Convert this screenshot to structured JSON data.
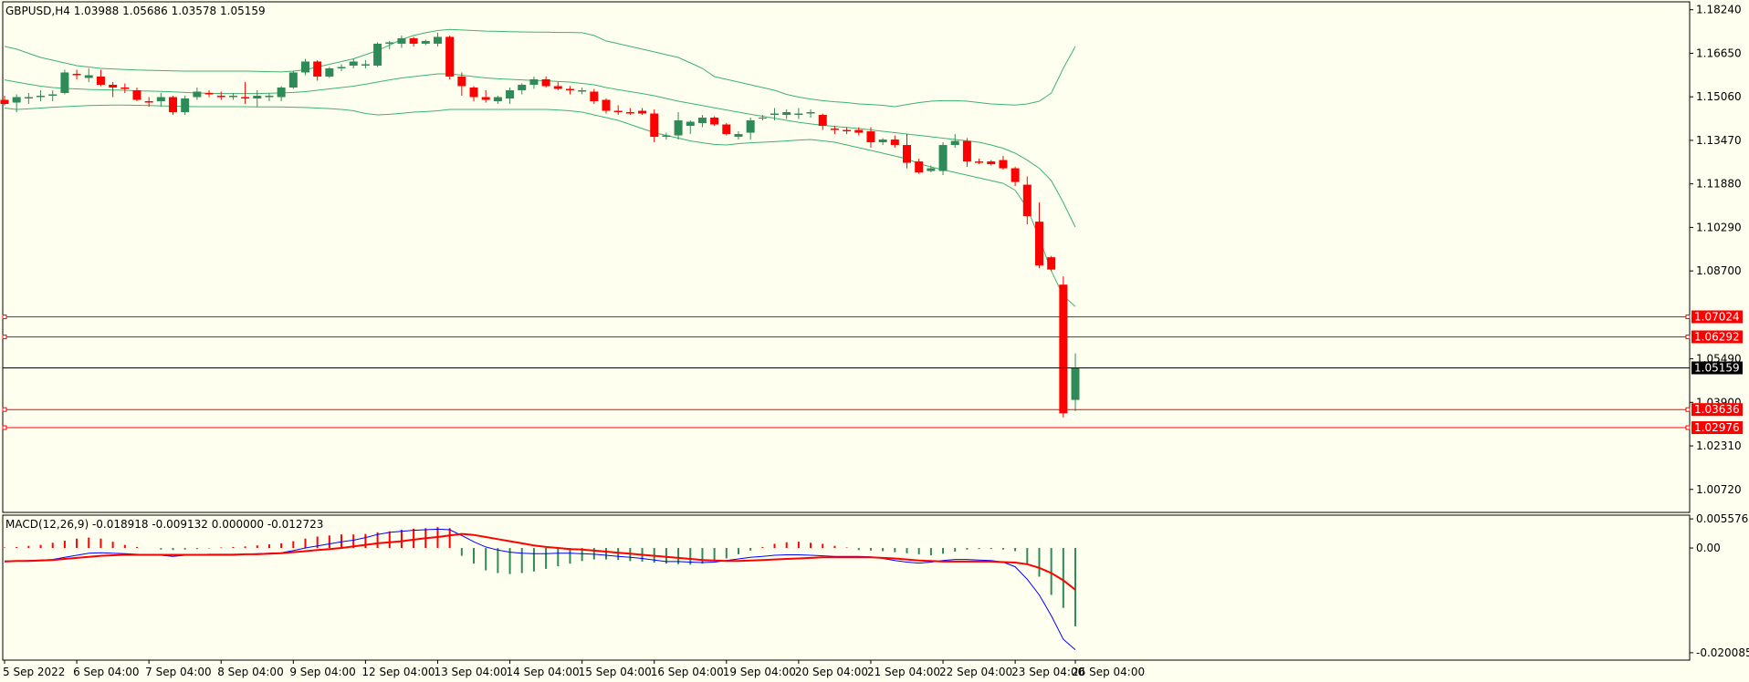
{
  "chart_data": {
    "type": "candlestick",
    "symbol_header": "GBPUSD,H4  1.03988 1.05686 1.03578 1.05159",
    "colors": {
      "background": "#ffffef",
      "bull": "#2e8b57",
      "bear": "#ff0000",
      "bands": "#3cb371",
      "hline": "#ff0000",
      "price_line": "#000000",
      "macd_line": "#0000ff",
      "signal_line": "#ff0000"
    },
    "price_axis": {
      "ylim": [
        0.9988,
        1.1853
      ],
      "ticks": [
        "1.18240",
        "1.16650",
        "1.15060",
        "1.13470",
        "1.11880",
        "1.10290",
        "1.08700",
        "1.05490",
        "1.03900",
        "1.02310",
        "1.00720"
      ]
    },
    "horizontal_lines": [
      {
        "value": 1.07024,
        "label": "1.07024"
      },
      {
        "value": 1.06292,
        "label": "1.06292"
      },
      {
        "value": 1.03636,
        "label": "1.03636"
      },
      {
        "value": 1.02976,
        "label": "1.02976"
      }
    ],
    "current_price": {
      "value": 1.05159,
      "label": "1.05159"
    },
    "x_axis": {
      "labels": [
        "5 Sep 2022",
        "6 Sep 04:00",
        "7 Sep 04:00",
        "8 Sep 04:00",
        "9 Sep 04:00",
        "12 Sep 04:00",
        "13 Sep 04:00",
        "14 Sep 04:00",
        "15 Sep 04:00",
        "16 Sep 04:00",
        "19 Sep 04:00",
        "20 Sep 04:00",
        "21 Sep 04:00",
        "22 Sep 04:00",
        "23 Sep 04:00",
        "26 Sep 04:00"
      ],
      "label_bar_index": [
        0,
        6,
        12,
        18,
        24,
        30,
        36,
        42,
        48,
        54,
        60,
        66,
        72,
        78,
        84,
        89
      ]
    },
    "candles": [
      {
        "o": 1.1495,
        "h": 1.151,
        "l": 1.1475,
        "c": 1.148
      },
      {
        "o": 1.1485,
        "h": 1.1515,
        "l": 1.145,
        "c": 1.1505
      },
      {
        "o": 1.15,
        "h": 1.152,
        "l": 1.148,
        "c": 1.1505
      },
      {
        "o": 1.1505,
        "h": 1.153,
        "l": 1.149,
        "c": 1.151
      },
      {
        "o": 1.151,
        "h": 1.153,
        "l": 1.149,
        "c": 1.1515
      },
      {
        "o": 1.152,
        "h": 1.1605,
        "l": 1.1515,
        "c": 1.1595
      },
      {
        "o": 1.159,
        "h": 1.1605,
        "l": 1.157,
        "c": 1.1585
      },
      {
        "o": 1.1575,
        "h": 1.161,
        "l": 1.156,
        "c": 1.1585
      },
      {
        "o": 1.158,
        "h": 1.1605,
        "l": 1.1545,
        "c": 1.155
      },
      {
        "o": 1.155,
        "h": 1.156,
        "l": 1.1505,
        "c": 1.154
      },
      {
        "o": 1.154,
        "h": 1.1555,
        "l": 1.152,
        "c": 1.1535
      },
      {
        "o": 1.153,
        "h": 1.154,
        "l": 1.149,
        "c": 1.1495
      },
      {
        "o": 1.149,
        "h": 1.1505,
        "l": 1.147,
        "c": 1.1485
      },
      {
        "o": 1.149,
        "h": 1.152,
        "l": 1.147,
        "c": 1.1505
      },
      {
        "o": 1.1505,
        "h": 1.151,
        "l": 1.144,
        "c": 1.145
      },
      {
        "o": 1.145,
        "h": 1.151,
        "l": 1.144,
        "c": 1.15
      },
      {
        "o": 1.1505,
        "h": 1.154,
        "l": 1.1495,
        "c": 1.1525
      },
      {
        "o": 1.152,
        "h": 1.153,
        "l": 1.1505,
        "c": 1.1515
      },
      {
        "o": 1.151,
        "h": 1.1525,
        "l": 1.1495,
        "c": 1.1505
      },
      {
        "o": 1.1505,
        "h": 1.152,
        "l": 1.1495,
        "c": 1.151
      },
      {
        "o": 1.1505,
        "h": 1.156,
        "l": 1.148,
        "c": 1.15
      },
      {
        "o": 1.15,
        "h": 1.153,
        "l": 1.147,
        "c": 1.151
      },
      {
        "o": 1.1505,
        "h": 1.152,
        "l": 1.149,
        "c": 1.151
      },
      {
        "o": 1.1505,
        "h": 1.1545,
        "l": 1.149,
        "c": 1.154
      },
      {
        "o": 1.154,
        "h": 1.16,
        "l": 1.1535,
        "c": 1.1595
      },
      {
        "o": 1.1595,
        "h": 1.1645,
        "l": 1.1585,
        "c": 1.1635
      },
      {
        "o": 1.1635,
        "h": 1.164,
        "l": 1.1565,
        "c": 1.158
      },
      {
        "o": 1.158,
        "h": 1.1615,
        "l": 1.1575,
        "c": 1.161
      },
      {
        "o": 1.161,
        "h": 1.1625,
        "l": 1.16,
        "c": 1.1615
      },
      {
        "o": 1.162,
        "h": 1.1645,
        "l": 1.161,
        "c": 1.1635
      },
      {
        "o": 1.162,
        "h": 1.164,
        "l": 1.161,
        "c": 1.1625
      },
      {
        "o": 1.162,
        "h": 1.1705,
        "l": 1.1615,
        "c": 1.17
      },
      {
        "o": 1.17,
        "h": 1.171,
        "l": 1.168,
        "c": 1.1705
      },
      {
        "o": 1.17,
        "h": 1.173,
        "l": 1.1685,
        "c": 1.172
      },
      {
        "o": 1.172,
        "h": 1.1725,
        "l": 1.169,
        "c": 1.17
      },
      {
        "o": 1.17,
        "h": 1.1715,
        "l": 1.1695,
        "c": 1.171
      },
      {
        "o": 1.17,
        "h": 1.174,
        "l": 1.169,
        "c": 1.1725
      },
      {
        "o": 1.1725,
        "h": 1.173,
        "l": 1.157,
        "c": 1.158
      },
      {
        "o": 1.158,
        "h": 1.1595,
        "l": 1.151,
        "c": 1.1545
      },
      {
        "o": 1.154,
        "h": 1.1545,
        "l": 1.149,
        "c": 1.1505
      },
      {
        "o": 1.1505,
        "h": 1.153,
        "l": 1.1485,
        "c": 1.1495
      },
      {
        "o": 1.149,
        "h": 1.151,
        "l": 1.148,
        "c": 1.1505
      },
      {
        "o": 1.15,
        "h": 1.154,
        "l": 1.148,
        "c": 1.153
      },
      {
        "o": 1.153,
        "h": 1.1555,
        "l": 1.1515,
        "c": 1.155
      },
      {
        "o": 1.155,
        "h": 1.158,
        "l": 1.1535,
        "c": 1.157
      },
      {
        "o": 1.157,
        "h": 1.158,
        "l": 1.154,
        "c": 1.1545
      },
      {
        "o": 1.1545,
        "h": 1.156,
        "l": 1.153,
        "c": 1.1535
      },
      {
        "o": 1.1535,
        "h": 1.1545,
        "l": 1.1515,
        "c": 1.153
      },
      {
        "o": 1.1525,
        "h": 1.154,
        "l": 1.1515,
        "c": 1.153
      },
      {
        "o": 1.1525,
        "h": 1.1535,
        "l": 1.148,
        "c": 1.149
      },
      {
        "o": 1.1495,
        "h": 1.15,
        "l": 1.1445,
        "c": 1.1455
      },
      {
        "o": 1.1455,
        "h": 1.1475,
        "l": 1.144,
        "c": 1.145
      },
      {
        "o": 1.145,
        "h": 1.1465,
        "l": 1.144,
        "c": 1.1445
      },
      {
        "o": 1.1455,
        "h": 1.1465,
        "l": 1.144,
        "c": 1.1445
      },
      {
        "o": 1.1445,
        "h": 1.146,
        "l": 1.134,
        "c": 1.136
      },
      {
        "o": 1.136,
        "h": 1.1375,
        "l": 1.135,
        "c": 1.1365
      },
      {
        "o": 1.1365,
        "h": 1.145,
        "l": 1.135,
        "c": 1.142
      },
      {
        "o": 1.14,
        "h": 1.142,
        "l": 1.137,
        "c": 1.1415
      },
      {
        "o": 1.141,
        "h": 1.144,
        "l": 1.1395,
        "c": 1.143
      },
      {
        "o": 1.143,
        "h": 1.1435,
        "l": 1.14,
        "c": 1.1405
      },
      {
        "o": 1.1405,
        "h": 1.141,
        "l": 1.1365,
        "c": 1.137
      },
      {
        "o": 1.136,
        "h": 1.138,
        "l": 1.135,
        "c": 1.137
      },
      {
        "o": 1.1375,
        "h": 1.143,
        "l": 1.135,
        "c": 1.142
      },
      {
        "o": 1.143,
        "h": 1.144,
        "l": 1.142,
        "c": 1.143
      },
      {
        "o": 1.144,
        "h": 1.1465,
        "l": 1.142,
        "c": 1.1445
      },
      {
        "o": 1.144,
        "h": 1.146,
        "l": 1.1425,
        "c": 1.145
      },
      {
        "o": 1.144,
        "h": 1.1465,
        "l": 1.1425,
        "c": 1.1445
      },
      {
        "o": 1.1445,
        "h": 1.146,
        "l": 1.143,
        "c": 1.145
      },
      {
        "o": 1.144,
        "h": 1.1445,
        "l": 1.1385,
        "c": 1.14
      },
      {
        "o": 1.139,
        "h": 1.14,
        "l": 1.137,
        "c": 1.1385
      },
      {
        "o": 1.1385,
        "h": 1.1395,
        "l": 1.137,
        "c": 1.138
      },
      {
        "o": 1.1385,
        "h": 1.1395,
        "l": 1.1365,
        "c": 1.1375
      },
      {
        "o": 1.138,
        "h": 1.1395,
        "l": 1.132,
        "c": 1.134
      },
      {
        "o": 1.134,
        "h": 1.1355,
        "l": 1.133,
        "c": 1.135
      },
      {
        "o": 1.135,
        "h": 1.1365,
        "l": 1.132,
        "c": 1.133
      },
      {
        "o": 1.133,
        "h": 1.137,
        "l": 1.1245,
        "c": 1.1265
      },
      {
        "o": 1.127,
        "h": 1.128,
        "l": 1.1225,
        "c": 1.123
      },
      {
        "o": 1.1235,
        "h": 1.1255,
        "l": 1.123,
        "c": 1.1245
      },
      {
        "o": 1.1235,
        "h": 1.134,
        "l": 1.122,
        "c": 1.133
      },
      {
        "o": 1.133,
        "h": 1.137,
        "l": 1.132,
        "c": 1.1345
      },
      {
        "o": 1.1345,
        "h": 1.1355,
        "l": 1.125,
        "c": 1.127
      },
      {
        "o": 1.127,
        "h": 1.128,
        "l": 1.126,
        "c": 1.1265
      },
      {
        "o": 1.127,
        "h": 1.1275,
        "l": 1.1255,
        "c": 1.126
      },
      {
        "o": 1.1275,
        "h": 1.129,
        "l": 1.124,
        "c": 1.1245
      },
      {
        "o": 1.1245,
        "h": 1.125,
        "l": 1.118,
        "c": 1.1195
      },
      {
        "o": 1.1185,
        "h": 1.1215,
        "l": 1.104,
        "c": 1.107
      },
      {
        "o": 1.105,
        "h": 1.112,
        "l": 1.088,
        "c": 1.089
      },
      {
        "o": 1.092,
        "h": 1.0925,
        "l": 1.087,
        "c": 1.0875
      },
      {
        "o": 1.082,
        "h": 1.085,
        "l": 1.0335,
        "c": 1.035
      },
      {
        "o": 1.0399,
        "h": 1.0569,
        "l": 1.0358,
        "c": 1.0516
      }
    ],
    "bands_upper": [
      1.169,
      1.168,
      1.1665,
      1.165,
      1.164,
      1.163,
      1.162,
      1.1615,
      1.161,
      1.1608,
      1.1606,
      1.1604,
      1.1603,
      1.1602,
      1.1601,
      1.16,
      1.16,
      1.16,
      1.16,
      1.16,
      1.16,
      1.1599,
      1.1598,
      1.1597,
      1.16,
      1.1605,
      1.1615,
      1.1625,
      1.1635,
      1.1645,
      1.166,
      1.1675,
      1.1695,
      1.1715,
      1.173,
      1.174,
      1.1748,
      1.1752,
      1.175,
      1.1748,
      1.1746,
      1.1745,
      1.1744,
      1.1743,
      1.1742,
      1.1742,
      1.1741,
      1.1741,
      1.174,
      1.173,
      1.171,
      1.17,
      1.169,
      1.168,
      1.167,
      1.166,
      1.165,
      1.163,
      1.161,
      1.158,
      1.157,
      1.156,
      1.155,
      1.154,
      1.153,
      1.1515,
      1.1505,
      1.1498,
      1.1492,
      1.1488,
      1.1485,
      1.148,
      1.1478,
      1.1475,
      1.147,
      1.1478,
      1.1485,
      1.149,
      1.1492,
      1.1492,
      1.149,
      1.1485,
      1.148,
      1.1478,
      1.1476,
      1.148,
      1.149,
      1.152,
      1.161,
      1.169
    ],
    "bands_middle": [
      1.1568,
      1.156,
      1.1552,
      1.1545,
      1.154,
      1.1537,
      1.1535,
      1.1533,
      1.1532,
      1.1531,
      1.153,
      1.1528,
      1.1527,
      1.1526,
      1.1524,
      1.1522,
      1.152,
      1.1519,
      1.1518,
      1.1518,
      1.1518,
      1.1518,
      1.1519,
      1.152,
      1.1522,
      1.1525,
      1.153,
      1.1535,
      1.154,
      1.1545,
      1.1552,
      1.156,
      1.1568,
      1.1575,
      1.158,
      1.1585,
      1.159,
      1.159,
      1.1585,
      1.158,
      1.1575,
      1.1572,
      1.157,
      1.1568,
      1.1566,
      1.1565,
      1.1562,
      1.156,
      1.1555,
      1.155,
      1.154,
      1.1532,
      1.1525,
      1.1518,
      1.151,
      1.15,
      1.149,
      1.1482,
      1.1474,
      1.1466,
      1.1458,
      1.145,
      1.1442,
      1.1435,
      1.1428,
      1.142,
      1.1413,
      1.1407,
      1.1402,
      1.1398,
      1.1394,
      1.139,
      1.1385,
      1.138,
      1.1375,
      1.137,
      1.1365,
      1.136,
      1.1355,
      1.135,
      1.1345,
      1.134,
      1.133,
      1.1318,
      1.13,
      1.1275,
      1.1245,
      1.12,
      1.112,
      1.103
    ],
    "bands_lower": [
      1.1465,
      1.146,
      1.1462,
      1.1465,
      1.1468,
      1.147,
      1.1472,
      1.1474,
      1.1475,
      1.1476,
      1.1476,
      1.1475,
      1.1474,
      1.1473,
      1.1472,
      1.1471,
      1.147,
      1.147,
      1.147,
      1.147,
      1.147,
      1.1469,
      1.1469,
      1.1469,
      1.1468,
      1.1467,
      1.1465,
      1.1463,
      1.146,
      1.1455,
      1.1445,
      1.144,
      1.1442,
      1.1446,
      1.145,
      1.1452,
      1.1455,
      1.146,
      1.146,
      1.146,
      1.146,
      1.146,
      1.146,
      1.146,
      1.146,
      1.146,
      1.1458,
      1.1455,
      1.145,
      1.144,
      1.143,
      1.142,
      1.1405,
      1.139,
      1.1375,
      1.1365,
      1.1355,
      1.1345,
      1.1338,
      1.1332,
      1.133,
      1.1335,
      1.1338,
      1.134,
      1.1342,
      1.1345,
      1.1348,
      1.135,
      1.1345,
      1.134,
      1.133,
      1.132,
      1.131,
      1.13,
      1.129,
      1.128,
      1.1262,
      1.125,
      1.124,
      1.123,
      1.122,
      1.121,
      1.12,
      1.119,
      1.1165,
      1.11,
      1.099,
      1.087,
      1.078,
      1.074
    ],
    "macd": {
      "header": "MACD(12,26,9) -0.018918 -0.009132 0.000000 -0.012723",
      "ylim": [
        -0.0215,
        0.0063
      ],
      "ticks": [
        "0.005576",
        "0.00",
        "-0.020085"
      ],
      "histogram": [
        0.0001,
        0.0002,
        0.0004,
        0.0006,
        0.001,
        0.0014,
        0.0018,
        0.002,
        0.0018,
        0.0012,
        0.0006,
        0.0002,
        0.0,
        -0.0003,
        -0.0004,
        -0.0003,
        -0.0002,
        -0.0001,
        0.0001,
        0.0002,
        0.0003,
        0.0005,
        0.0007,
        0.0009,
        0.0013,
        0.0018,
        0.0022,
        0.0024,
        0.0026,
        0.0026,
        0.0027,
        0.003,
        0.0032,
        0.0035,
        0.0037,
        0.0038,
        0.004,
        0.0038,
        -0.0015,
        -0.003,
        -0.0043,
        -0.0048,
        -0.005,
        -0.0048,
        -0.0045,
        -0.004,
        -0.0035,
        -0.003,
        -0.0025,
        -0.0022,
        -0.0022,
        -0.0023,
        -0.0025,
        -0.0026,
        -0.0028,
        -0.003,
        -0.0031,
        -0.0032,
        -0.003,
        -0.0025,
        -0.002,
        -0.0012,
        -0.0005,
        0.0002,
        0.0008,
        0.0011,
        0.0012,
        0.001,
        0.0008,
        0.0004,
        0.0001,
        -0.0004,
        -0.0005,
        -0.0006,
        -0.0008,
        -0.001,
        -0.0012,
        -0.0014,
        -0.0011,
        -0.0007,
        -0.0003,
        -0.0002,
        -0.0002,
        -0.0003,
        -0.0006,
        -0.003,
        -0.0055,
        -0.009,
        -0.0115,
        -0.015
      ],
      "macd_line": [
        -0.0025,
        -0.0025,
        -0.0024,
        -0.0023,
        -0.0022,
        -0.0018,
        -0.0014,
        -0.001,
        -0.0009,
        -0.001,
        -0.0011,
        -0.0012,
        -0.0013,
        -0.0014,
        -0.0016,
        -0.0014,
        -0.0013,
        -0.0012,
        -0.0012,
        -0.0012,
        -0.0012,
        -0.0011,
        -0.001,
        -0.0009,
        -0.0005,
        0.0,
        0.0004,
        0.0008,
        0.0012,
        0.0015,
        0.002,
        0.0026,
        0.003,
        0.0032,
        0.0034,
        0.0035,
        0.0036,
        0.0035,
        0.0024,
        0.0012,
        0.0002,
        -0.0004,
        -0.0008,
        -0.001,
        -0.0011,
        -0.0011,
        -0.001,
        -0.001,
        -0.0011,
        -0.0012,
        -0.0014,
        -0.0016,
        -0.0018,
        -0.002,
        -0.0023,
        -0.0026,
        -0.0026,
        -0.0027,
        -0.0028,
        -0.0027,
        -0.0024,
        -0.0021,
        -0.0018,
        -0.0016,
        -0.0014,
        -0.0013,
        -0.0013,
        -0.0014,
        -0.0015,
        -0.0016,
        -0.0016,
        -0.0016,
        -0.0017,
        -0.002,
        -0.0024,
        -0.0027,
        -0.0029,
        -0.0027,
        -0.0024,
        -0.0022,
        -0.0022,
        -0.0023,
        -0.0024,
        -0.0027,
        -0.0036,
        -0.006,
        -0.009,
        -0.013,
        -0.0175,
        -0.0195
      ],
      "signal_line": [
        -0.0026,
        -0.0025,
        -0.0025,
        -0.0024,
        -0.0023,
        -0.0021,
        -0.0019,
        -0.0017,
        -0.0015,
        -0.0014,
        -0.0013,
        -0.0013,
        -0.0013,
        -0.0013,
        -0.0013,
        -0.0013,
        -0.0013,
        -0.0013,
        -0.0013,
        -0.0013,
        -0.0012,
        -0.0012,
        -0.0011,
        -0.001,
        -0.0008,
        -0.0006,
        -0.0004,
        -0.0002,
        0.0,
        0.0003,
        0.0006,
        0.0009,
        0.0011,
        0.0013,
        0.0016,
        0.0019,
        0.0021,
        0.0024,
        0.0027,
        0.0025,
        0.0021,
        0.0017,
        0.0013,
        0.0009,
        0.0005,
        0.0002,
        0.0,
        -0.0002,
        -0.0003,
        -0.0005,
        -0.0007,
        -0.0009,
        -0.0011,
        -0.0013,
        -0.0015,
        -0.0017,
        -0.0019,
        -0.0021,
        -0.0023,
        -0.0024,
        -0.0025,
        -0.0025,
        -0.0024,
        -0.0023,
        -0.0022,
        -0.0021,
        -0.002,
        -0.0019,
        -0.0018,
        -0.0018,
        -0.0018,
        -0.0018,
        -0.0018,
        -0.0019,
        -0.002,
        -0.0022,
        -0.0024,
        -0.0025,
        -0.0026,
        -0.0026,
        -0.0026,
        -0.0026,
        -0.0026,
        -0.0027,
        -0.0028,
        -0.0031,
        -0.0038,
        -0.0048,
        -0.0062,
        -0.008
      ]
    }
  }
}
